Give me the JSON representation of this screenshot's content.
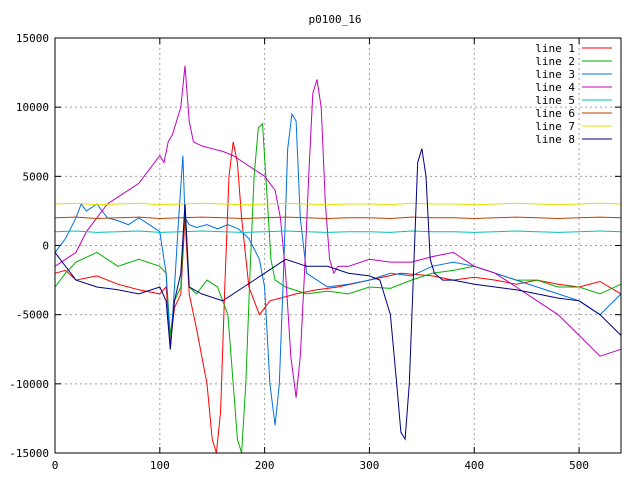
{
  "chart_data": {
    "type": "line",
    "title": "p0100_16",
    "xlabel": "",
    "ylabel": "",
    "xlim": [
      0,
      540
    ],
    "ylim": [
      -15000,
      15000
    ],
    "xticks": [
      0,
      100,
      200,
      300,
      400,
      500
    ],
    "yticks": [
      -15000,
      -10000,
      -5000,
      0,
      5000,
      10000,
      15000
    ],
    "grid": true,
    "legend_position": "top-right",
    "series": [
      {
        "name": "line 1",
        "color": "#ff0000",
        "x": [
          0,
          10,
          20,
          40,
          60,
          80,
          100,
          106,
          110,
          114,
          120,
          124,
          128,
          135,
          145,
          150,
          154,
          158,
          162,
          166,
          170,
          174,
          178,
          185,
          195,
          205,
          215,
          230,
          250,
          270,
          300,
          330,
          360,
          380,
          400,
          420,
          440,
          460,
          480,
          500,
          520,
          540
        ],
        "y": [
          -2000,
          -1800,
          -2500,
          -2200,
          -2800,
          -3200,
          -3500,
          -3000,
          -7000,
          -4500,
          -3500,
          2000,
          -3500,
          -6000,
          -10000,
          -14000,
          -15000,
          -12000,
          -3000,
          5000,
          7500,
          6000,
          2000,
          -3000,
          -5000,
          -4000,
          -3800,
          -3500,
          -3200,
          -3000,
          -2500,
          -2000,
          -2200,
          -2500,
          -2300,
          -2500,
          -2800,
          -2500,
          -2800,
          -3000,
          -2600,
          -3500
        ]
      },
      {
        "name": "line 2",
        "color": "#00b000",
        "x": [
          0,
          10,
          20,
          40,
          60,
          80,
          100,
          106,
          110,
          114,
          120,
          124,
          128,
          135,
          145,
          155,
          165,
          170,
          174,
          178,
          182,
          186,
          190,
          194,
          198,
          202,
          206,
          210,
          220,
          240,
          260,
          280,
          300,
          320,
          340,
          360,
          380,
          400,
          420,
          440,
          460,
          480,
          500,
          520,
          540
        ],
        "y": [
          -3000,
          -2000,
          -1200,
          -500,
          -1500,
          -1000,
          -1500,
          -2000,
          -6500,
          -4000,
          -3000,
          3000,
          -3000,
          -3500,
          -2500,
          -3000,
          -5000,
          -10000,
          -14000,
          -15000,
          -10000,
          -2000,
          5000,
          8500,
          8800,
          4000,
          -1000,
          -2500,
          -3000,
          -3500,
          -3300,
          -3500,
          -3000,
          -3100,
          -2500,
          -2000,
          -1800,
          -1500,
          -2000,
          -2500,
          -2500,
          -3000,
          -3000,
          -3500,
          -2800
        ]
      },
      {
        "name": "line 3",
        "color": "#0070e0",
        "x": [
          0,
          10,
          20,
          25,
          30,
          40,
          50,
          60,
          70,
          80,
          90,
          100,
          106,
          110,
          114,
          118,
          122,
          124,
          128,
          135,
          145,
          155,
          165,
          175,
          185,
          195,
          200,
          205,
          210,
          214,
          218,
          222,
          226,
          230,
          234,
          240,
          250,
          260,
          280,
          300,
          320,
          340,
          360,
          380,
          400,
          420,
          440,
          460,
          480,
          500,
          520,
          540
        ],
        "y": [
          -500,
          500,
          2000,
          3000,
          2500,
          3000,
          2000,
          1800,
          1500,
          2000,
          1500,
          1000,
          -2000,
          -7500,
          -3000,
          2000,
          6500,
          2000,
          1500,
          1300,
          1500,
          1200,
          1500,
          1200,
          500,
          -1000,
          -3000,
          -10000,
          -13000,
          -10000,
          -2000,
          7000,
          9500,
          9000,
          2000,
          -2000,
          -2500,
          -3000,
          -2800,
          -2500,
          -2000,
          -2200,
          -1500,
          -1200,
          -1500,
          -2000,
          -2500,
          -3000,
          -3500,
          -4000,
          -5000,
          -3500
        ]
      },
      {
        "name": "line 4",
        "color": "#c000c0",
        "x": [
          0,
          10,
          20,
          30,
          40,
          50,
          60,
          70,
          80,
          90,
          100,
          104,
          108,
          112,
          116,
          120,
          124,
          128,
          132,
          140,
          150,
          160,
          170,
          180,
          190,
          200,
          210,
          215,
          220,
          225,
          230,
          234,
          238,
          242,
          246,
          250,
          254,
          258,
          262,
          266,
          270,
          280,
          300,
          320,
          340,
          360,
          380,
          400,
          420,
          440,
          460,
          480,
          500,
          520,
          540
        ],
        "y": [
          -1500,
          -1000,
          -500,
          1000,
          2000,
          3000,
          3500,
          4000,
          4500,
          5500,
          6500,
          6000,
          7500,
          8000,
          9000,
          10000,
          13000,
          9000,
          7500,
          7200,
          7000,
          6800,
          6500,
          6000,
          5500,
          5000,
          4000,
          2000,
          -2000,
          -8000,
          -11000,
          -8000,
          -2000,
          5000,
          11000,
          12000,
          10000,
          3000,
          -1000,
          -2000,
          -1500,
          -1500,
          -1000,
          -1200,
          -1200,
          -800,
          -500,
          -1500,
          -2000,
          -3000,
          -4000,
          -5000,
          -6500,
          -8000,
          -7500
        ]
      },
      {
        "name": "line 5",
        "color": "#00c0c0",
        "x": [
          0,
          20,
          40,
          60,
          80,
          100,
          120,
          140,
          160,
          180,
          200,
          220,
          240,
          260,
          280,
          300,
          320,
          340,
          360,
          380,
          400,
          420,
          440,
          460,
          480,
          500,
          520,
          540
        ],
        "y": [
          1000,
          1050,
          950,
          1000,
          1050,
          950,
          1000,
          1050,
          1000,
          950,
          1000,
          1050,
          1000,
          950,
          1000,
          1000,
          950,
          1050,
          1000,
          1000,
          950,
          1000,
          1050,
          1000,
          950,
          1000,
          1050,
          1000
        ]
      },
      {
        "name": "line 6",
        "color": "#c04000",
        "x": [
          0,
          20,
          40,
          60,
          80,
          100,
          120,
          140,
          160,
          180,
          200,
          220,
          240,
          260,
          280,
          300,
          320,
          340,
          360,
          380,
          400,
          420,
          440,
          460,
          480,
          500,
          520,
          540
        ],
        "y": [
          2000,
          2050,
          1950,
          2000,
          2050,
          1950,
          2000,
          2050,
          2000,
          1950,
          2000,
          2050,
          2000,
          1950,
          2000,
          2000,
          1950,
          2050,
          2000,
          2000,
          1950,
          2000,
          2050,
          2000,
          1950,
          2000,
          2050,
          2000
        ]
      },
      {
        "name": "line 7",
        "color": "#e0e000",
        "x": [
          0,
          20,
          40,
          60,
          80,
          100,
          120,
          140,
          160,
          180,
          200,
          220,
          240,
          260,
          280,
          300,
          320,
          340,
          360,
          380,
          400,
          420,
          440,
          460,
          480,
          500,
          520,
          540
        ],
        "y": [
          3000,
          3050,
          2950,
          3000,
          3050,
          2950,
          3000,
          3050,
          3000,
          2950,
          3000,
          3050,
          3000,
          2950,
          3000,
          3000,
          2950,
          3050,
          3000,
          3000,
          2950,
          3000,
          3050,
          3000,
          2950,
          3000,
          3050,
          3000
        ]
      },
      {
        "name": "line 8",
        "color": "#000080",
        "x": [
          0,
          10,
          20,
          40,
          60,
          80,
          100,
          106,
          110,
          114,
          120,
          124,
          128,
          140,
          160,
          180,
          200,
          220,
          240,
          260,
          280,
          300,
          310,
          320,
          326,
          330,
          334,
          338,
          342,
          346,
          350,
          354,
          358,
          362,
          370,
          380,
          400,
          420,
          440,
          460,
          480,
          500,
          520,
          540
        ],
        "y": [
          -500,
          -1500,
          -2500,
          -3000,
          -3200,
          -3500,
          -3000,
          -4000,
          -7500,
          -4000,
          -2000,
          3000,
          -3000,
          -3500,
          -4000,
          -3000,
          -2000,
          -1000,
          -1500,
          -1500,
          -2000,
          -2200,
          -2500,
          -5000,
          -10000,
          -13500,
          -14000,
          -10000,
          -2000,
          6000,
          7000,
          5000,
          -1000,
          -2000,
          -2500,
          -2500,
          -2800,
          -3000,
          -3200,
          -3500,
          -3800,
          -4000,
          -5000,
          -6500
        ]
      }
    ]
  }
}
